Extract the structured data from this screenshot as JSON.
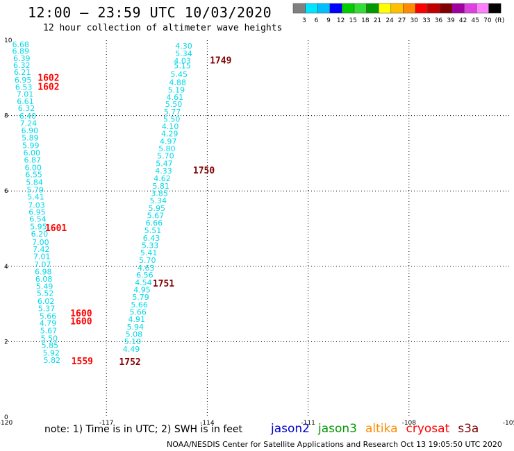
{
  "header": {
    "title": "12:00 – 23:59 UTC 10/03/2020",
    "subtitle": "12 hour collection of altimeter wave heights"
  },
  "color_scale": {
    "labels": [
      "3",
      "6",
      "9",
      "12",
      "15",
      "18",
      "21",
      "24",
      "27",
      "30",
      "33",
      "36",
      "39",
      "42",
      "45",
      "70",
      "(ft)"
    ],
    "colors": [
      "#808080",
      "#00e5ff",
      "#00bfff",
      "#0000ff",
      "#00cc00",
      "#33dd33",
      "#009900",
      "#ffff00",
      "#ffc000",
      "#ff8c00",
      "#ff0000",
      "#c00000",
      "#800000",
      "#a000a0",
      "#e040e0",
      "#ff80ff",
      "#000000"
    ]
  },
  "footer": {
    "note": "note:  1) Time is in UTC;  2) SWH is in feet",
    "credit": "NOAA/NESDIS Center for Satellite Applications and Research    Oct 13 19:05:50 UTC 2020",
    "satellites": [
      {
        "name": "jason2",
        "color": "#0000cc"
      },
      {
        "name": "jason3",
        "color": "#009900"
      },
      {
        "name": "altika",
        "color": "#ff8c00"
      },
      {
        "name": "cryosat",
        "color": "#ff0000"
      },
      {
        "name": "s3a",
        "color": "#800000"
      }
    ]
  },
  "chart_data": {
    "type": "scatter",
    "title": "12 hour collection of altimeter wave heights",
    "xlabel": "",
    "ylabel": "",
    "xlim": [
      -120,
      -105
    ],
    "ylim": [
      0,
      10
    ],
    "x_ticks": [
      "-120",
      "-117",
      "-114",
      "-111",
      "-108",
      "-105"
    ],
    "y_ticks": [
      "0",
      "2",
      "4",
      "6",
      "8",
      "10"
    ],
    "grid": true,
    "wave_color": "#00d8e8",
    "series": [
      {
        "label_color": "#ff0000",
        "values": [
          {
            "x": -119.55,
            "y": 9.82,
            "v": "6.68"
          },
          {
            "x": -119.55,
            "y": 9.64,
            "v": "6.89"
          },
          {
            "x": -119.52,
            "y": 9.45,
            "v": "6.39"
          },
          {
            "x": -119.52,
            "y": 9.26,
            "v": "6.32"
          },
          {
            "x": -119.5,
            "y": 9.08,
            "v": "6.21"
          },
          {
            "x": -119.48,
            "y": 8.88,
            "v": "6.95"
          },
          {
            "x": -119.46,
            "y": 8.68,
            "v": "6.53"
          },
          {
            "x": -119.42,
            "y": 8.5,
            "v": "7.01"
          },
          {
            "x": -119.41,
            "y": 8.31,
            "v": "6.61"
          },
          {
            "x": -119.38,
            "y": 8.12,
            "v": "6.32"
          },
          {
            "x": -119.34,
            "y": 7.92,
            "v": "6.40"
          },
          {
            "x": -119.32,
            "y": 7.73,
            "v": "7.24"
          },
          {
            "x": -119.28,
            "y": 7.53,
            "v": "6.90"
          },
          {
            "x": -119.27,
            "y": 7.34,
            "v": "5.89"
          },
          {
            "x": -119.25,
            "y": 7.14,
            "v": "5.99"
          },
          {
            "x": -119.22,
            "y": 6.94,
            "v": "6.00"
          },
          {
            "x": -119.2,
            "y": 6.75,
            "v": "6.87"
          },
          {
            "x": -119.18,
            "y": 6.55,
            "v": "6.00"
          },
          {
            "x": -119.16,
            "y": 6.36,
            "v": "6.55"
          },
          {
            "x": -119.14,
            "y": 6.16,
            "v": "5.84"
          },
          {
            "x": -119.12,
            "y": 5.96,
            "v": "5.79"
          },
          {
            "x": -119.1,
            "y": 5.77,
            "v": "5.41"
          },
          {
            "x": -119.08,
            "y": 5.55,
            "v": "7.03"
          },
          {
            "x": -119.06,
            "y": 5.37,
            "v": "6.95"
          },
          {
            "x": -119.04,
            "y": 5.18,
            "v": "6.54"
          },
          {
            "x": -119.02,
            "y": 4.98,
            "v": "5.95"
          },
          {
            "x": -118.99,
            "y": 4.79,
            "v": "6.20"
          },
          {
            "x": -118.96,
            "y": 4.57,
            "v": "7.00"
          },
          {
            "x": -118.94,
            "y": 4.38,
            "v": "7.42"
          },
          {
            "x": -118.92,
            "y": 4.19,
            "v": "7.01"
          },
          {
            "x": -118.9,
            "y": 3.98,
            "v": "7.07"
          },
          {
            "x": -118.88,
            "y": 3.78,
            "v": "6.98"
          },
          {
            "x": -118.86,
            "y": 3.59,
            "v": "6.08"
          },
          {
            "x": -118.84,
            "y": 3.4,
            "v": "5.49"
          },
          {
            "x": -118.82,
            "y": 3.21,
            "v": "5.52"
          },
          {
            "x": -118.8,
            "y": 3.0,
            "v": "6.02"
          },
          {
            "x": -118.78,
            "y": 2.81,
            "v": "5.37"
          },
          {
            "x": -118.74,
            "y": 2.61,
            "v": "5.66"
          },
          {
            "x": -118.74,
            "y": 2.42,
            "v": "4.79"
          },
          {
            "x": -118.72,
            "y": 2.22,
            "v": "5.67"
          },
          {
            "x": -118.7,
            "y": 2.02,
            "v": "5.50"
          },
          {
            "x": -118.68,
            "y": 1.83,
            "v": "5.85"
          },
          {
            "x": -118.64,
            "y": 1.63,
            "v": "5.92"
          },
          {
            "x": -118.62,
            "y": 1.44,
            "v": "5.82"
          }
        ],
        "markers": [
          {
            "x": -118.72,
            "y": 8.92,
            "v": "1602"
          },
          {
            "x": -118.72,
            "y": 8.68,
            "v": "1602"
          },
          {
            "x": -118.5,
            "y": 4.94,
            "v": "1601"
          },
          {
            "x": -117.75,
            "y": 2.67,
            "v": "1600"
          },
          {
            "x": -117.75,
            "y": 2.46,
            "v": "1600"
          },
          {
            "x": -117.72,
            "y": 1.4,
            "v": "1559"
          }
        ]
      },
      {
        "label_color": "#800000",
        "values": [
          {
            "x": -114.7,
            "y": 9.78,
            "v": "4.30"
          },
          {
            "x": -114.7,
            "y": 9.58,
            "v": "5.34"
          },
          {
            "x": -114.74,
            "y": 9.38,
            "v": "4.03"
          },
          {
            "x": -114.74,
            "y": 9.25,
            "v": "5.15"
          },
          {
            "x": -114.84,
            "y": 9.02,
            "v": "5.45"
          },
          {
            "x": -114.88,
            "y": 8.81,
            "v": "4.88"
          },
          {
            "x": -114.92,
            "y": 8.61,
            "v": "5.19"
          },
          {
            "x": -114.96,
            "y": 8.42,
            "v": "4.61"
          },
          {
            "x": -115.0,
            "y": 8.23,
            "v": "5.50"
          },
          {
            "x": -115.04,
            "y": 8.03,
            "v": "5.77"
          },
          {
            "x": -115.06,
            "y": 7.84,
            "v": "5.50"
          },
          {
            "x": -115.1,
            "y": 7.64,
            "v": "4.10"
          },
          {
            "x": -115.12,
            "y": 7.45,
            "v": "4.29"
          },
          {
            "x": -115.16,
            "y": 7.25,
            "v": "4.97"
          },
          {
            "x": -115.2,
            "y": 7.05,
            "v": "5.80"
          },
          {
            "x": -115.24,
            "y": 6.86,
            "v": "5.70"
          },
          {
            "x": -115.28,
            "y": 6.66,
            "v": "5.47"
          },
          {
            "x": -115.3,
            "y": 6.46,
            "v": "4.33"
          },
          {
            "x": -115.34,
            "y": 6.26,
            "v": "4.62"
          },
          {
            "x": -115.38,
            "y": 6.06,
            "v": "5.81"
          },
          {
            "x": -115.42,
            "y": 5.87,
            "v": "3.85"
          },
          {
            "x": -115.46,
            "y": 5.67,
            "v": "5.34"
          },
          {
            "x": -115.5,
            "y": 5.47,
            "v": "5.95"
          },
          {
            "x": -115.54,
            "y": 5.28,
            "v": "5.67"
          },
          {
            "x": -115.58,
            "y": 5.08,
            "v": "6.66"
          },
          {
            "x": -115.62,
            "y": 4.88,
            "v": "5.51"
          },
          {
            "x": -115.66,
            "y": 4.68,
            "v": "6.43"
          },
          {
            "x": -115.7,
            "y": 4.48,
            "v": "5.33"
          },
          {
            "x": -115.74,
            "y": 4.29,
            "v": "5.41"
          },
          {
            "x": -115.78,
            "y": 4.09,
            "v": "5.70"
          },
          {
            "x": -115.82,
            "y": 3.89,
            "v": "4.63"
          },
          {
            "x": -115.86,
            "y": 3.7,
            "v": "6.56"
          },
          {
            "x": -115.9,
            "y": 3.5,
            "v": "4.54"
          },
          {
            "x": -115.94,
            "y": 3.31,
            "v": "4.95"
          },
          {
            "x": -115.98,
            "y": 3.11,
            "v": "5.79"
          },
          {
            "x": -116.02,
            "y": 2.91,
            "v": "5.66"
          },
          {
            "x": -116.06,
            "y": 2.72,
            "v": "5.66"
          },
          {
            "x": -116.1,
            "y": 2.52,
            "v": "4.91"
          },
          {
            "x": -116.14,
            "y": 2.32,
            "v": "5.94"
          },
          {
            "x": -116.18,
            "y": 2.13,
            "v": "5.08"
          },
          {
            "x": -116.22,
            "y": 1.93,
            "v": "5.10"
          },
          {
            "x": -116.26,
            "y": 1.73,
            "v": "4.49"
          }
        ],
        "markers": [
          {
            "x": -113.6,
            "y": 9.38,
            "v": "1749"
          },
          {
            "x": -114.1,
            "y": 6.46,
            "v": "1750"
          },
          {
            "x": -115.3,
            "y": 3.46,
            "v": "1751"
          },
          {
            "x": -116.3,
            "y": 1.38,
            "v": "1752"
          }
        ]
      }
    ]
  }
}
